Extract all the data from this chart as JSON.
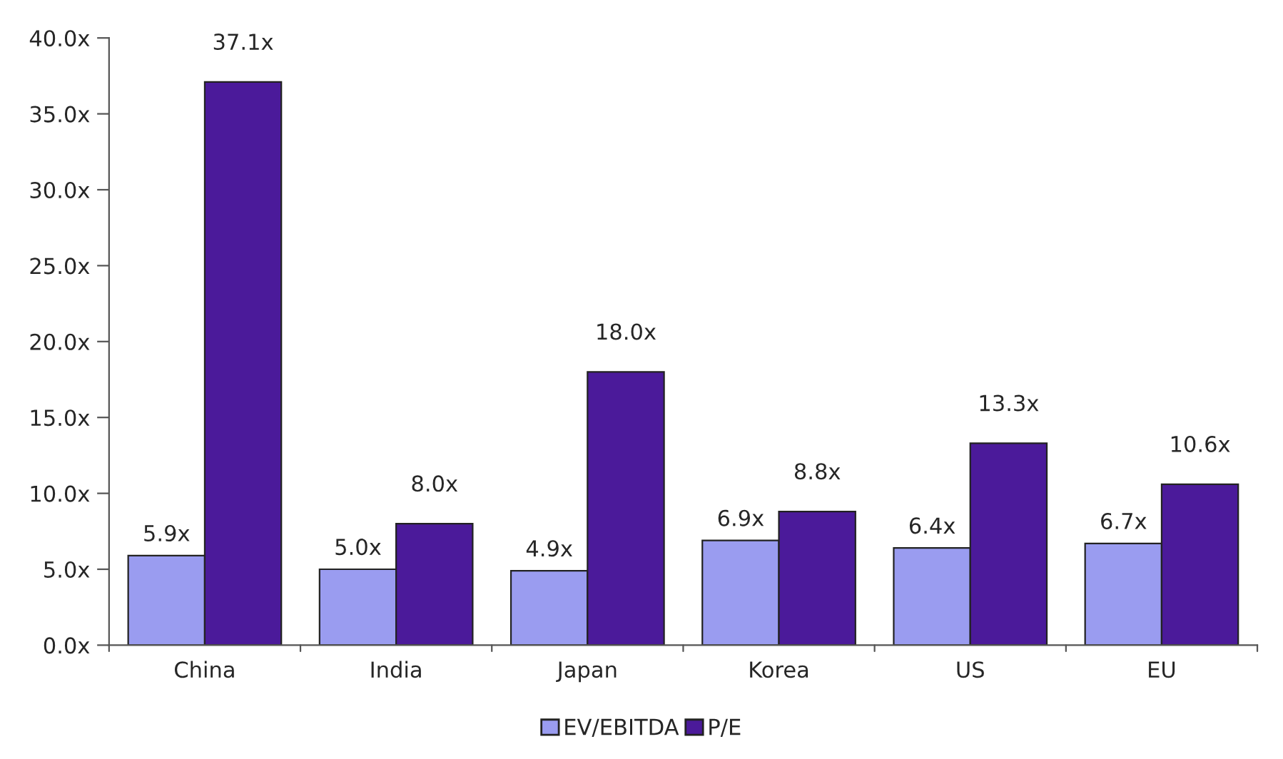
{
  "chart_data": {
    "type": "bar",
    "categories": [
      "China",
      "India",
      "Japan",
      "Korea",
      "US",
      "EU"
    ],
    "series": [
      {
        "name": "EV/EBITDA",
        "color": "#9a9cf0",
        "values": [
          5.9,
          5.0,
          4.9,
          6.9,
          6.4,
          6.7
        ],
        "value_labels": [
          "5.9x",
          "5.0x",
          "4.9x",
          "6.9x",
          "6.4x",
          "6.7x"
        ]
      },
      {
        "name": "P/E",
        "color": "#4b1a9a",
        "values": [
          37.1,
          8.0,
          18.0,
          8.8,
          13.3,
          10.6
        ],
        "value_labels": [
          "37.1x",
          "8.0x",
          "18.0x",
          "8.8x",
          "13.3x",
          "10.6x"
        ]
      }
    ],
    "ylim": [
      0,
      40
    ],
    "yticks": [
      {
        "value": 0,
        "label": "0.0x"
      },
      {
        "value": 5,
        "label": "5.0x"
      },
      {
        "value": 10,
        "label": "10.0x"
      },
      {
        "value": 15,
        "label": "15.0x"
      },
      {
        "value": 20,
        "label": "20.0x"
      },
      {
        "value": 25,
        "label": "25.0x"
      },
      {
        "value": 30,
        "label": "30.0x"
      },
      {
        "value": 35,
        "label": "35.0x"
      },
      {
        "value": 40,
        "label": "40.0x"
      }
    ],
    "grid": false,
    "legend": "bottom"
  }
}
